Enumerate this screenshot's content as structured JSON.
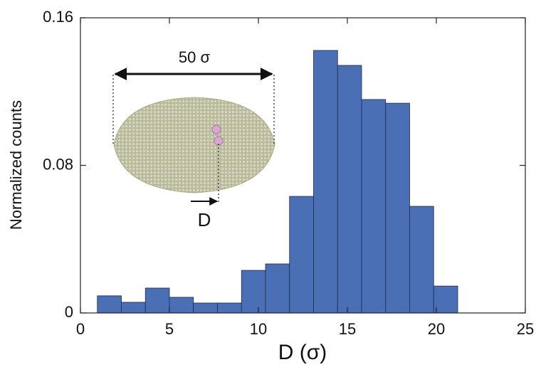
{
  "chart_data": {
    "type": "histogram",
    "xlabel": "D (σ)",
    "ylabel": "Normalized counts",
    "bins": [
      0.95,
      2.3,
      3.65,
      5.0,
      6.35,
      7.7,
      9.05,
      10.4,
      11.75,
      13.1,
      14.45,
      15.8,
      17.15,
      18.5,
      19.85,
      21.2
    ],
    "values": [
      0.0093,
      0.0058,
      0.0135,
      0.0085,
      0.0054,
      0.0054,
      0.0231,
      0.0266,
      0.0632,
      0.1423,
      0.1342,
      0.1157,
      0.1137,
      0.0578,
      0.0146
    ],
    "color": "#4a6fb5",
    "xlim": [
      0,
      25
    ],
    "xticks": [
      0,
      5,
      10,
      15,
      20,
      25
    ],
    "ylim": [
      0,
      0.16
    ],
    "yticks": [
      0,
      0.08,
      0.16
    ],
    "annotations": [
      "50 σ",
      "D"
    ]
  }
}
